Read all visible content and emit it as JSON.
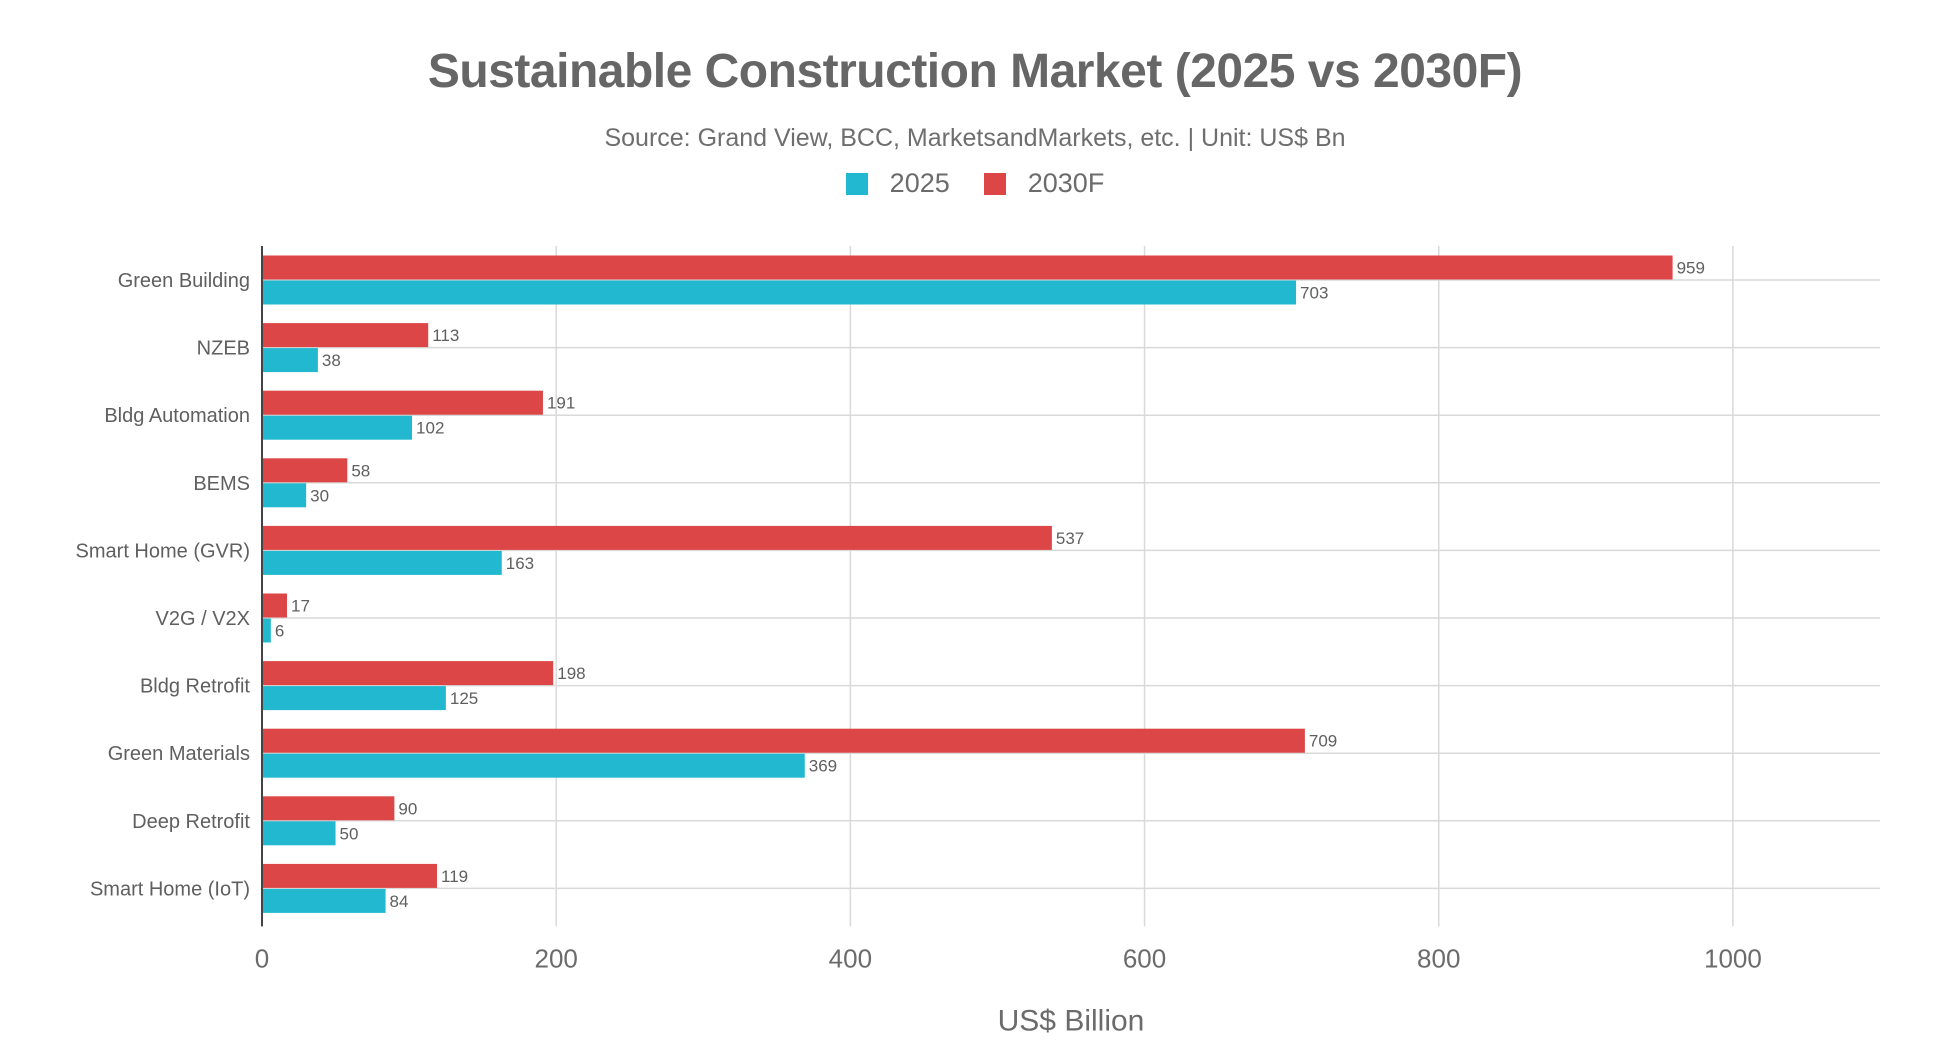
{
  "chart_data": {
    "type": "bar",
    "orientation": "horizontal",
    "title": "Sustainable Construction Market (2025 vs 2030F)",
    "subtitle": "Source: Grand View, BCC, MarketsandMarkets, etc. | Unit: US$ Bn",
    "xlabel": "US$ Billion",
    "ylabel": "",
    "xlim": [
      0,
      1100
    ],
    "xticks": [
      0,
      200,
      400,
      600,
      800,
      1000
    ],
    "grid": true,
    "legend_position": "top-center",
    "categories": [
      "Green Building",
      "NZEB",
      "Bldg Automation",
      "BEMS",
      "Smart Home (GVR)",
      "V2G / V2X",
      "Bldg Retrofit",
      "Green Materials",
      "Deep Retrofit",
      "Smart Home (IoT)"
    ],
    "series": [
      {
        "name": "2025",
        "color": "#22b8cf",
        "values": [
          703,
          38,
          102,
          30,
          163,
          6,
          125,
          369,
          50,
          84
        ]
      },
      {
        "name": "2030F",
        "color": "#dc4646",
        "values": [
          959,
          113,
          191,
          58,
          537,
          17,
          198,
          709,
          90,
          119
        ]
      }
    ]
  }
}
